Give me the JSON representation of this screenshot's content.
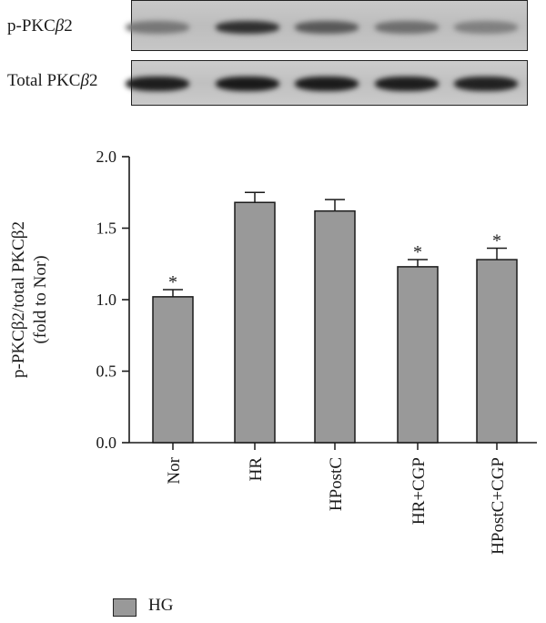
{
  "blot": {
    "row1_prefix": "p-PKC",
    "row1_beta": "β",
    "row1_suffix": "2",
    "row2_prefix": "Total PKC",
    "row2_beta": "β",
    "row2_suffix": "2",
    "row1_band_intensity": [
      0.45,
      0.85,
      0.62,
      0.5,
      0.4
    ],
    "row2_band_intensity": [
      0.95,
      0.97,
      0.96,
      0.95,
      0.93
    ]
  },
  "chart_data": {
    "type": "bar",
    "categories": [
      "Nor",
      "HR",
      "HPostC",
      "HR+CGP",
      "HPostC+CGP"
    ],
    "series": [
      {
        "name": "HG",
        "values": [
          1.02,
          1.68,
          1.62,
          1.23,
          1.28
        ],
        "errors": [
          0.05,
          0.07,
          0.08,
          0.05,
          0.08
        ]
      }
    ],
    "significance": [
      "*",
      "",
      "",
      "*",
      "*"
    ],
    "ylabel_line1": "p-PKCβ2/total PKCβ2",
    "ylabel_line2": "(fold to Nor)",
    "ylim": [
      0,
      2.0
    ],
    "yticks": [
      "0.0",
      "0.5",
      "1.0",
      "1.5",
      "2.0"
    ],
    "yticks_values": [
      0,
      0.5,
      1.0,
      1.5,
      2.0
    ],
    "bar_color": "#999999",
    "legend_position": "bottom-left"
  },
  "legend": {
    "label": "HG"
  }
}
